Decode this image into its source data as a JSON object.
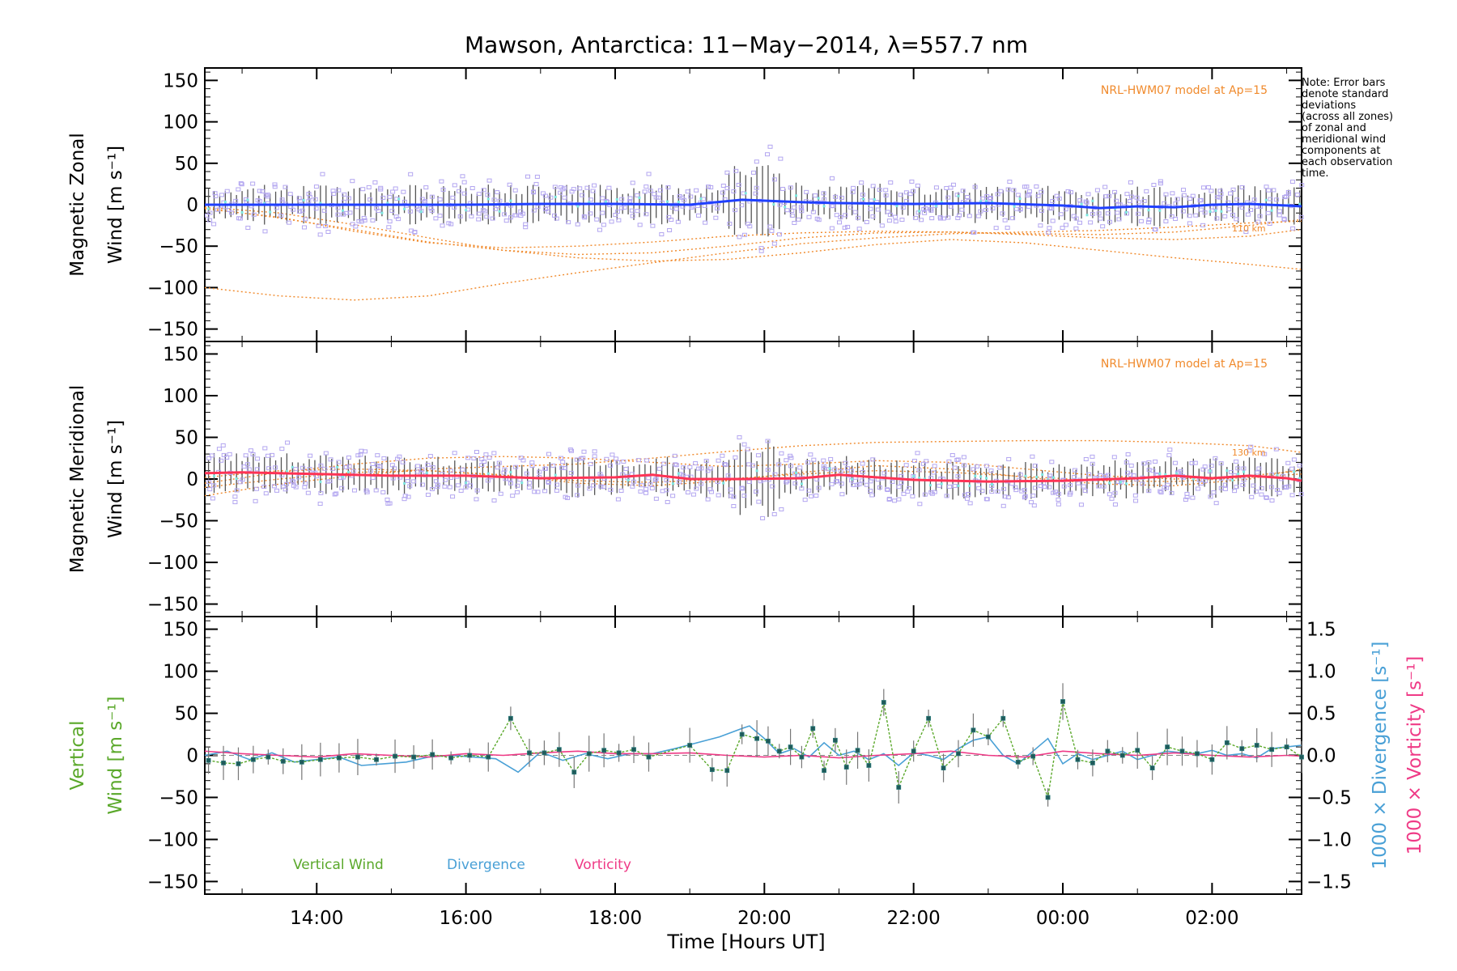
{
  "title": "Mawson, Antarctica: 11−May−2014, λ=557.7 nm",
  "note_lines": [
    "Note: Error bars",
    "denote standard",
    "deviations",
    "(across all zones)",
    "of zonal and",
    "meridional wind",
    "components at",
    "each observation",
    "time."
  ],
  "xaxis": {
    "label": "Time [Hours UT]",
    "tick_labels": [
      "14:00",
      "16:00",
      "18:00",
      "20:00",
      "22:00",
      "00:00",
      "02:00"
    ],
    "tick_hours": [
      14,
      16,
      18,
      20,
      22,
      24,
      26
    ],
    "range_hours": [
      12.5,
      27.2
    ]
  },
  "colors": {
    "zonal_mean": "#1f3fff",
    "meridional_mean": "#ff3355",
    "zone_box": "#b3a6f0",
    "model": "#f08a2c",
    "vertical": "#5aa82a",
    "divergence": "#49a0d6",
    "vorticity": "#ef3a86",
    "cyan_dots": "#7ee8e0"
  },
  "chart_data": [
    {
      "type": "line",
      "panel": "zonal",
      "ylabel_line1": "Magnetic Zonal",
      "ylabel_line2": "Wind [m s⁻¹]",
      "ylim": [
        -165,
        165
      ],
      "yticks": [
        -150,
        -100,
        -50,
        0,
        50,
        100,
        150
      ],
      "annotation": "NRL-HWM07 model at Ap=15",
      "model_labels": [
        "110 km"
      ],
      "mean_series": {
        "x": [
          12.5,
          13.0,
          14.0,
          15.0,
          16.0,
          17.0,
          18.0,
          19.0,
          19.7,
          20.5,
          21.0,
          22.0,
          23.0,
          24.0,
          24.5,
          25.0,
          25.5,
          26.0,
          26.5,
          27.0,
          27.2
        ],
        "y": [
          0,
          0,
          0,
          0,
          0,
          1,
          1,
          0,
          6,
          3,
          2,
          1,
          2,
          -1,
          -4,
          -2,
          -3,
          0,
          1,
          -1,
          -2
        ]
      },
      "model_curves": [
        {
          "x": [
            12.5,
            13.5,
            14.5,
            15.5,
            16.5,
            17.5,
            18.5,
            19.5,
            20.5,
            21.5,
            22.5,
            23.5,
            24.5,
            25.5,
            26.5,
            27.2
          ],
          "y": [
            -100,
            -110,
            -115,
            -110,
            -95,
            -82,
            -70,
            -58,
            -47,
            -40,
            -35,
            -33,
            -31,
            -27,
            -22,
            -20
          ]
        },
        {
          "x": [
            12.5,
            13.5,
            14.5,
            15.5,
            16.5,
            17.5,
            18.5,
            19.5,
            20.5,
            21.5,
            22.5,
            23.5,
            24.5,
            25.5,
            26.5,
            27.2
          ],
          "y": [
            -5,
            -15,
            -32,
            -46,
            -52,
            -50,
            -45,
            -38,
            -34,
            -32,
            -33,
            -36,
            -40,
            -42,
            -38,
            -30
          ]
        },
        {
          "x": [
            12.5,
            13.5,
            14.5,
            15.5,
            16.5,
            17.5,
            18.5,
            19.5,
            20.5,
            21.5,
            22.5,
            23.5,
            24.5,
            25.5,
            26.5,
            27.2
          ],
          "y": [
            -3,
            -10,
            -24,
            -40,
            -55,
            -64,
            -68,
            -66,
            -58,
            -48,
            -42,
            -46,
            -55,
            -64,
            -72,
            -78
          ]
        },
        {
          "x": [
            12.5,
            13.5,
            14.5,
            15.5,
            16.5,
            17.5,
            18.5,
            19.5,
            20.5,
            21.5,
            22.5,
            23.5,
            24.5,
            25.5,
            26.5,
            27.2
          ],
          "y": [
            -4,
            -16,
            -30,
            -45,
            -55,
            -60,
            -58,
            -50,
            -40,
            -34,
            -33,
            -35,
            -36,
            -33,
            -25,
            -18
          ]
        }
      ]
    },
    {
      "type": "line",
      "panel": "meridional",
      "ylabel_line1": "Magnetic Meridional",
      "ylabel_line2": "Wind [m s⁻¹]",
      "ylim": [
        -165,
        165
      ],
      "yticks": [
        -150,
        -100,
        -50,
        0,
        50,
        100,
        150
      ],
      "annotation": "NRL-HWM07 model at Ap=15",
      "model_labels": [
        "130 km"
      ],
      "mean_series": {
        "x": [
          12.5,
          13.0,
          14.0,
          15.0,
          16.0,
          17.0,
          18.0,
          18.5,
          19.0,
          19.7,
          20.5,
          21.0,
          22.0,
          23.0,
          24.0,
          25.0,
          25.5,
          26.0,
          26.5,
          27.0,
          27.2
        ],
        "y": [
          7,
          8,
          6,
          4,
          4,
          1,
          2,
          5,
          0,
          0,
          1,
          5,
          -1,
          -3,
          -2,
          1,
          4,
          1,
          4,
          1,
          -2
        ]
      },
      "model_curves": [
        {
          "x": [
            12.5,
            13.5,
            14.5,
            15.5,
            16.5,
            17.5,
            18.5,
            19.5,
            20.5,
            21.5,
            22.5,
            23.5,
            24.5,
            25.5,
            26.5,
            27.2
          ],
          "y": [
            -20,
            -6,
            4,
            12,
            15,
            18,
            25,
            33,
            40,
            44,
            45,
            46,
            46,
            44,
            40,
            32
          ]
        },
        {
          "x": [
            12.5,
            13.5,
            14.5,
            15.5,
            16.5,
            17.5,
            18.5,
            19.5,
            20.5,
            21.5,
            22.5,
            23.5,
            24.5,
            25.5,
            26.5,
            27.2
          ],
          "y": [
            -5,
            8,
            18,
            25,
            27,
            25,
            20,
            15,
            18,
            22,
            20,
            12,
            4,
            0,
            4,
            10
          ]
        },
        {
          "x": [
            12.5,
            13.5,
            14.5,
            15.5,
            16.5,
            17.5,
            18.5,
            19.5,
            20.5,
            21.5,
            22.5,
            23.5,
            24.5,
            25.5,
            26.5,
            27.2
          ],
          "y": [
            -10,
            0,
            8,
            10,
            5,
            -5,
            -8,
            -2,
            8,
            16,
            12,
            2,
            -6,
            -8,
            0,
            12
          ]
        },
        {
          "x": [
            12.5,
            13.5,
            14.5,
            15.5,
            16.5,
            17.5,
            18.5,
            19.5,
            20.5,
            21.5,
            22.5,
            23.5,
            24.5,
            25.5,
            26.5,
            27.2
          ],
          "y": [
            2,
            10,
            12,
            10,
            4,
            -2,
            -4,
            0,
            6,
            10,
            8,
            3,
            -2,
            -3,
            2,
            6
          ]
        }
      ]
    },
    {
      "type": "line",
      "panel": "vertical",
      "ylabel_line1": "Vertical",
      "ylabel_line2": "Wind [m s⁻¹]",
      "ylim": [
        -165,
        165
      ],
      "yticks": [
        -150,
        -100,
        -50,
        0,
        50,
        100,
        150
      ],
      "y2": {
        "ylim": [
          -1.65,
          1.65
        ],
        "yticks": [
          -1.5,
          -1.0,
          -0.5,
          0.0,
          0.5,
          1.0,
          1.5
        ],
        "tick_labels": [
          "−1.5",
          "−1.0",
          "−0.5",
          "0.0",
          "0.5",
          "1.0",
          "1.5"
        ],
        "label_divergence": "1000 × Divergence [s⁻¹]",
        "label_vorticity": "1000 × Vorticity [s⁻¹]"
      },
      "legend": [
        "Vertical Wind",
        "Divergence",
        "Vorticity"
      ],
      "series": [
        {
          "name": "Vertical Wind",
          "x": [
            12.55,
            12.75,
            12.95,
            13.15,
            13.35,
            13.55,
            13.8,
            14.05,
            14.3,
            14.55,
            14.8,
            15.05,
            15.3,
            15.55,
            15.8,
            16.05,
            16.3,
            16.6,
            16.85,
            17.05,
            17.25,
            17.45,
            17.65,
            17.85,
            18.05,
            18.25,
            18.45,
            19.0,
            19.3,
            19.5,
            19.7,
            19.9,
            20.05,
            20.2,
            20.35,
            20.5,
            20.65,
            20.8,
            20.95,
            21.1,
            21.25,
            21.4,
            21.6,
            21.8,
            22.0,
            22.2,
            22.4,
            22.6,
            22.8,
            23.0,
            23.2,
            23.4,
            23.6,
            23.8,
            24.0,
            24.2,
            24.4,
            24.6,
            24.8,
            25.0,
            25.2,
            25.4,
            25.6,
            25.8,
            26.0,
            26.2,
            26.4,
            26.6,
            26.8,
            27.0,
            27.2
          ],
          "y": [
            -6,
            -9,
            -10,
            -5,
            -2,
            -7,
            -8,
            -5,
            -3,
            -2,
            -5,
            -1,
            -2,
            1,
            -3,
            0,
            -2,
            44,
            3,
            3,
            7,
            -20,
            2,
            6,
            3,
            7,
            -2,
            12,
            -17,
            -18,
            25,
            20,
            17,
            5,
            10,
            -2,
            32,
            -18,
            18,
            -14,
            6,
            -12,
            63,
            -38,
            5,
            44,
            -15,
            2,
            30,
            22,
            44,
            -8,
            -1,
            -50,
            64,
            -5,
            -9,
            5,
            0,
            6,
            -15,
            10,
            5,
            2,
            -5,
            15,
            8,
            12,
            7,
            10,
            -2
          ]
        },
        {
          "name": "Divergence",
          "x": [
            12.5,
            12.8,
            13.1,
            13.4,
            13.7,
            14.0,
            14.3,
            14.6,
            14.9,
            15.2,
            15.5,
            15.8,
            16.1,
            16.4,
            16.7,
            17.0,
            17.3,
            17.6,
            17.9,
            18.2,
            18.5,
            18.8,
            19.1,
            19.4,
            19.7,
            19.8,
            20.0,
            20.2,
            20.4,
            20.6,
            20.8,
            21.0,
            21.2,
            21.4,
            21.6,
            21.8,
            22.0,
            22.2,
            22.4,
            22.6,
            22.8,
            23.0,
            23.2,
            23.4,
            23.6,
            23.8,
            24.0,
            24.2,
            24.4,
            24.6,
            24.8,
            25.0,
            25.2,
            25.4,
            25.6,
            25.8,
            26.0,
            26.2,
            26.4,
            26.6,
            26.8,
            27.0,
            27.2
          ],
          "y": [
            0.0,
            0.05,
            -0.05,
            0.03,
            -0.08,
            -0.05,
            -0.02,
            -0.12,
            -0.1,
            -0.08,
            -0.02,
            0.0,
            -0.02,
            -0.04,
            -0.2,
            0.04,
            -0.06,
            0.02,
            -0.04,
            0.02,
            0.02,
            0.08,
            0.15,
            0.22,
            0.32,
            0.35,
            0.2,
            0.02,
            0.08,
            -0.02,
            0.15,
            0.0,
            0.05,
            -0.05,
            0.02,
            -0.12,
            0.03,
            0.0,
            -0.05,
            0.08,
            0.18,
            0.22,
            0.0,
            -0.1,
            0.05,
            0.2,
            -0.1,
            0.02,
            -0.05,
            0.0,
            0.05,
            -0.05,
            0.0,
            0.05,
            0.03,
            0.02,
            0.06,
            0.0,
            0.02,
            -0.03,
            0.08,
            0.1,
            0.12
          ]
        },
        {
          "name": "Vorticity",
          "x": [
            12.5,
            13.0,
            13.5,
            14.0,
            14.5,
            15.0,
            15.5,
            16.0,
            16.5,
            17.0,
            17.5,
            18.0,
            18.5,
            19.0,
            19.5,
            20.0,
            20.5,
            21.0,
            21.5,
            22.0,
            22.5,
            23.0,
            23.5,
            24.0,
            24.5,
            25.0,
            25.5,
            26.0,
            26.5,
            27.0,
            27.2
          ],
          "y": [
            0.05,
            0.02,
            0.0,
            -0.02,
            0.02,
            0.0,
            -0.02,
            0.02,
            0.0,
            0.03,
            0.05,
            0.02,
            0.02,
            0.03,
            0.0,
            -0.02,
            0.0,
            -0.03,
            0.0,
            0.02,
            0.05,
            0.0,
            -0.02,
            0.05,
            0.02,
            0.0,
            0.03,
            0.0,
            -0.02,
            0.0,
            -0.01
          ]
        }
      ]
    }
  ]
}
